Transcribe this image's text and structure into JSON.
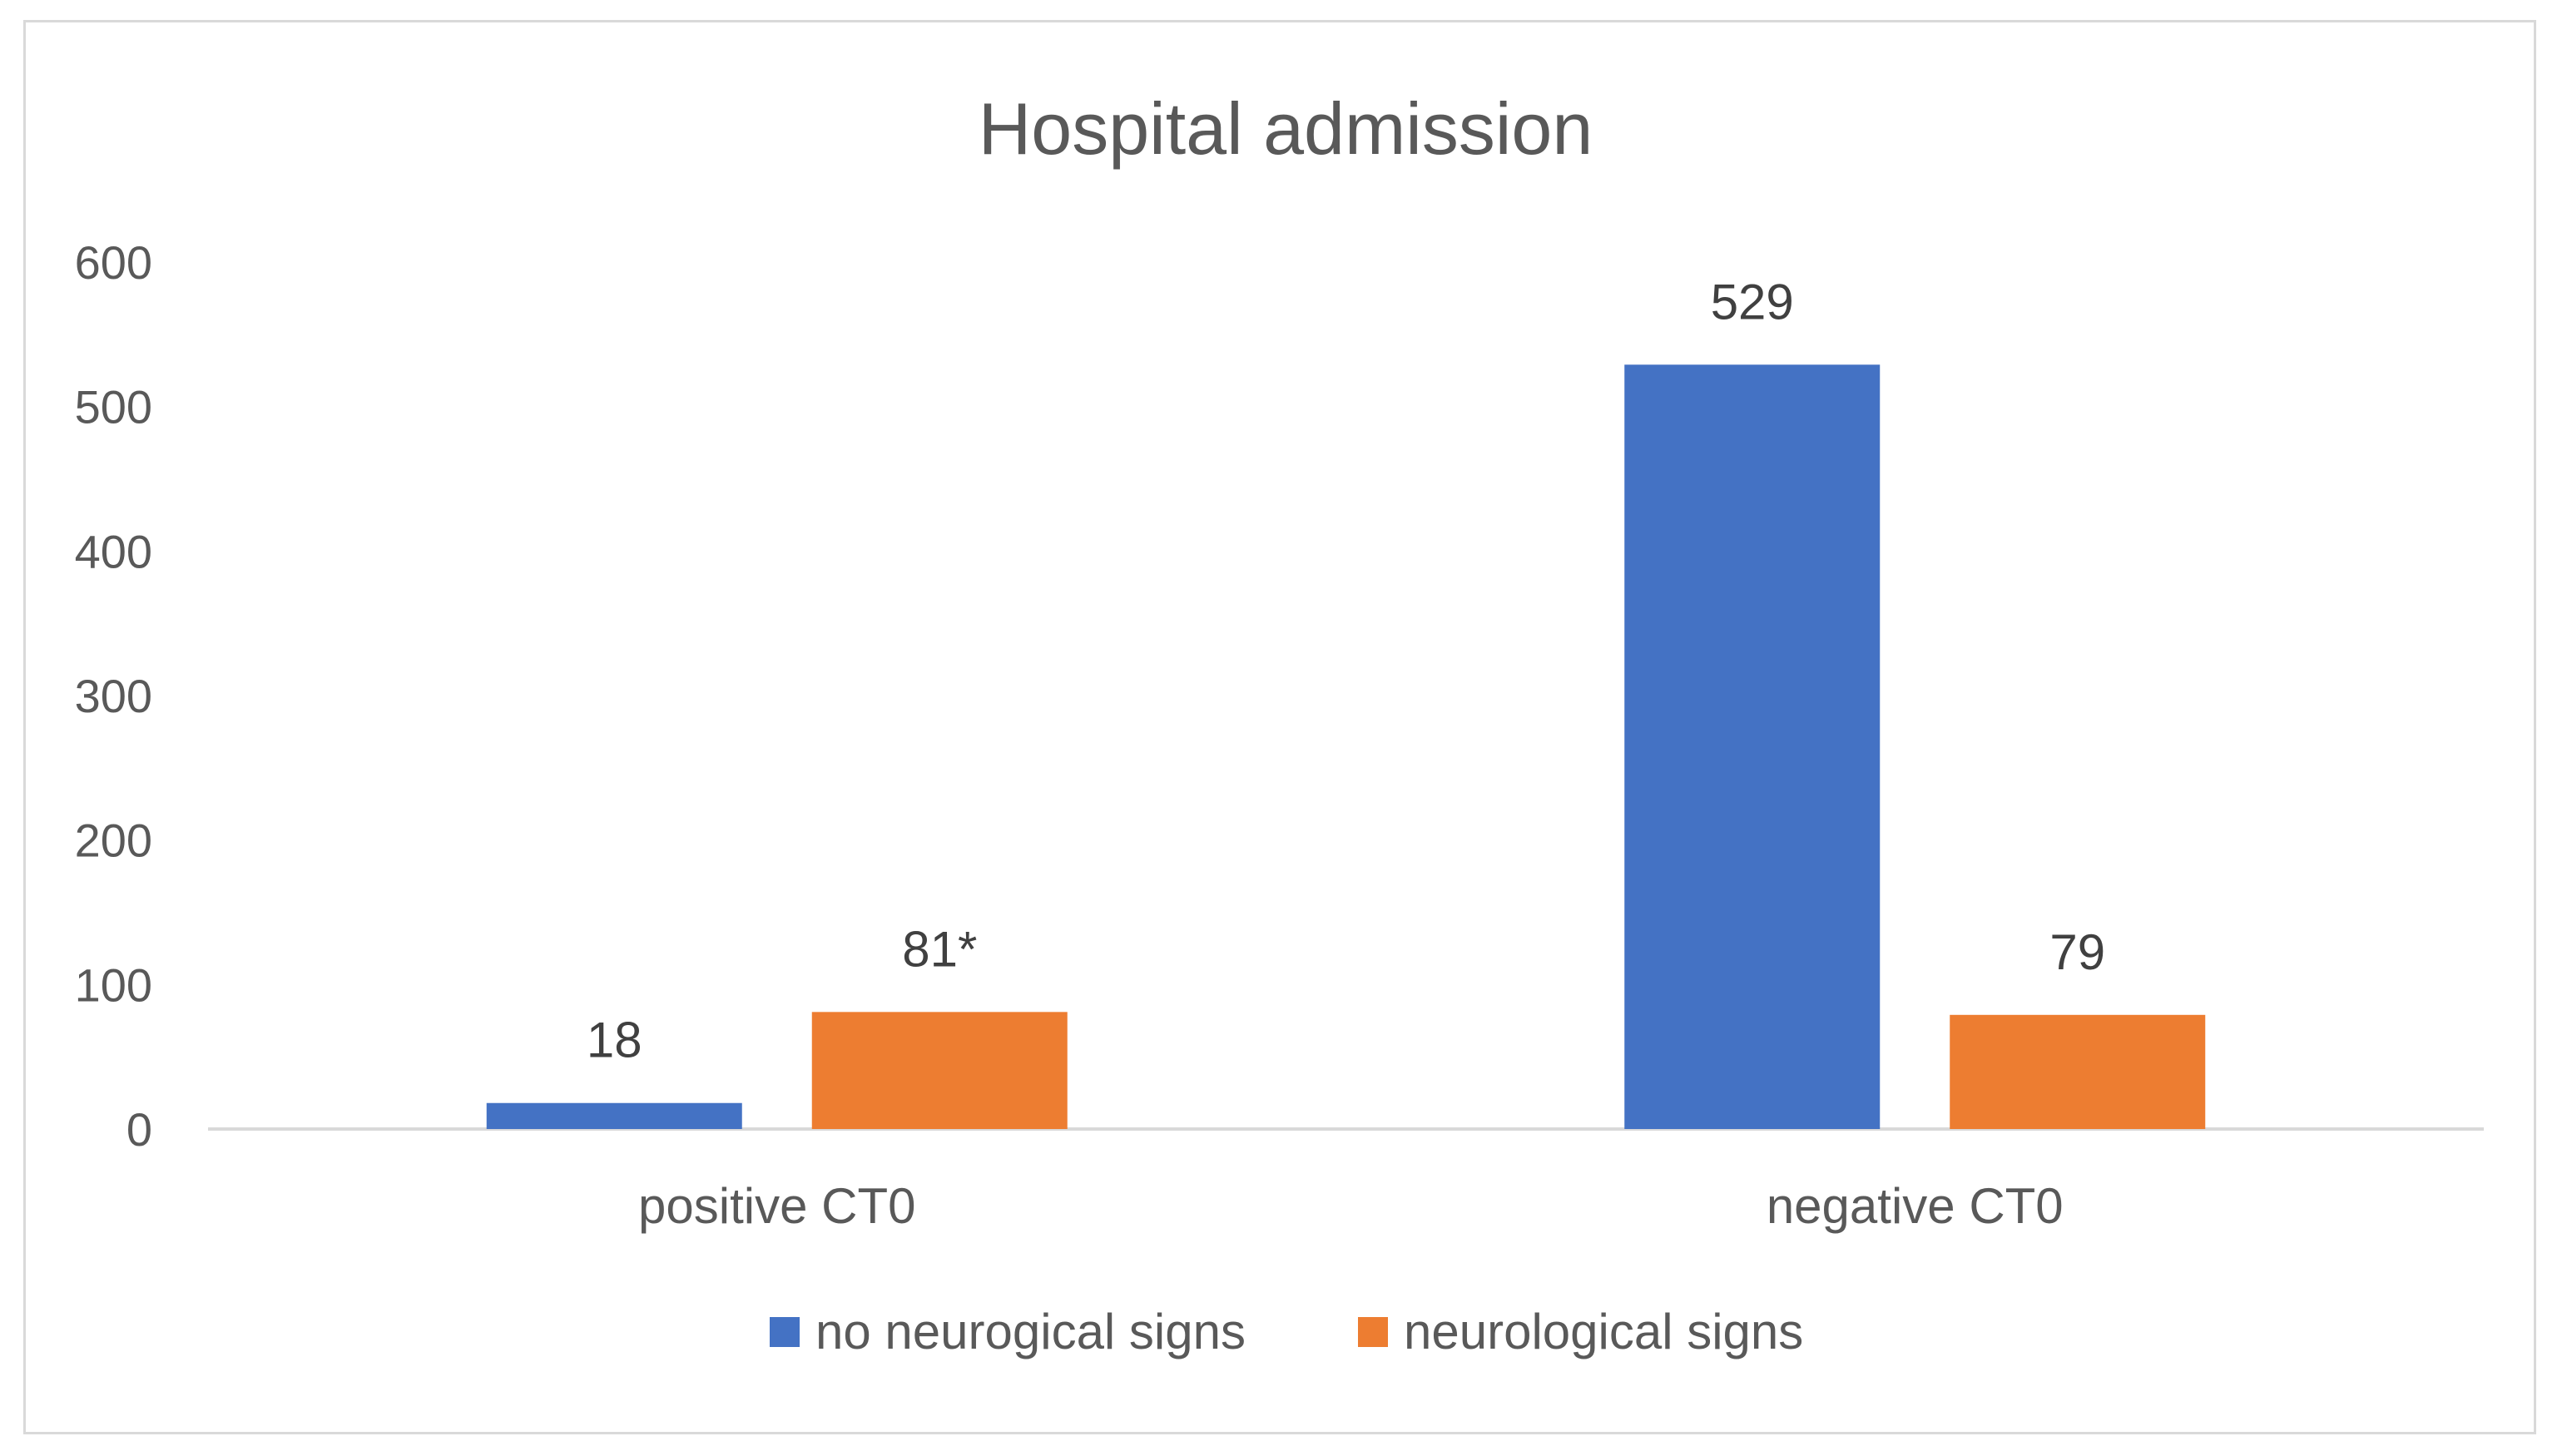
{
  "chart_data": {
    "type": "bar",
    "title": "Hospital admission",
    "categories": [
      "positive CT0",
      "negative CT0"
    ],
    "series": [
      {
        "name": "no neurogical signs",
        "values": [
          18,
          529
        ],
        "labels": [
          "18",
          "529"
        ],
        "color": "#4472C4"
      },
      {
        "name": "neurological signs",
        "values": [
          81,
          79
        ],
        "labels": [
          "81*",
          "79"
        ],
        "color": "#ED7D31"
      }
    ],
    "yticks": [
      "0",
      "100",
      "200",
      "300",
      "400",
      "500",
      "600"
    ],
    "ylim": [
      0,
      600
    ],
    "xlabel": "",
    "ylabel": "",
    "grid": false,
    "legend_position": "bottom"
  }
}
